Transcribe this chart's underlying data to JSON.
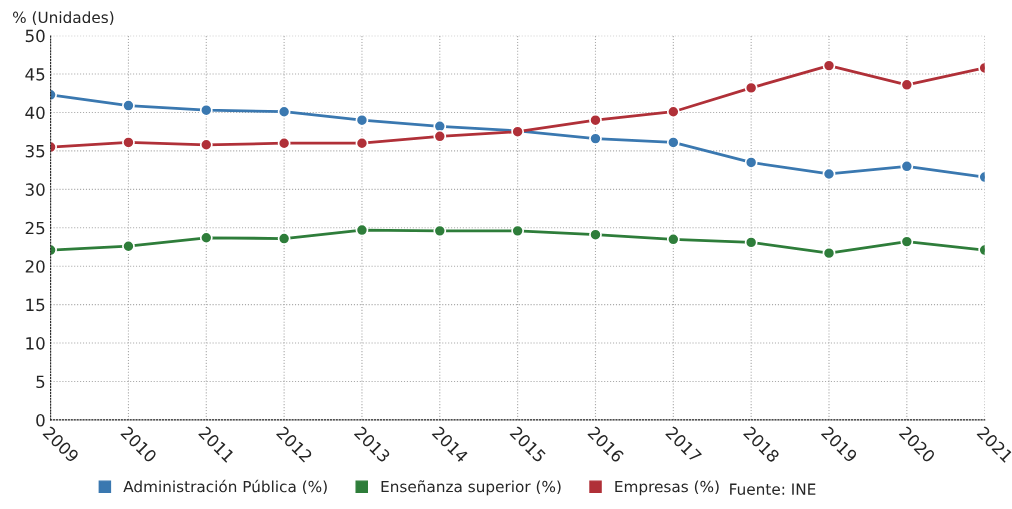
{
  "chart_data": {
    "type": "line",
    "ylabel": "% (Unidades)",
    "categories": [
      "2009",
      "2010",
      "2011",
      "2012",
      "2013",
      "2014",
      "2015",
      "2016",
      "2017",
      "2018",
      "2019",
      "2020",
      "2021"
    ],
    "series": [
      {
        "name": "Administración Pública (%)",
        "color": "#3a78b0",
        "values": [
          42.3,
          40.9,
          40.3,
          40.1,
          39.0,
          38.2,
          37.6,
          36.6,
          36.1,
          33.5,
          32.0,
          33.0,
          31.6
        ]
      },
      {
        "name": "Enseñanza superior (%)",
        "color": "#2e7d3a",
        "values": [
          22.1,
          22.6,
          23.7,
          23.6,
          24.7,
          24.6,
          24.6,
          24.1,
          23.5,
          23.1,
          21.7,
          23.2,
          22.1
        ]
      },
      {
        "name": "Empresas (%)",
        "color": "#b03038",
        "values": [
          35.5,
          36.1,
          35.8,
          36.0,
          36.0,
          36.9,
          37.5,
          39.0,
          40.1,
          43.2,
          46.1,
          43.6,
          45.8
        ]
      }
    ],
    "ylim": [
      0,
      50
    ],
    "yticks": [
      0,
      5,
      10,
      15,
      20,
      25,
      30,
      35,
      40,
      45,
      50
    ],
    "grid": true,
    "legend": "bottom",
    "marker": "circle",
    "line_style": "solid",
    "annotations": [
      "Fuente: INE"
    ]
  }
}
